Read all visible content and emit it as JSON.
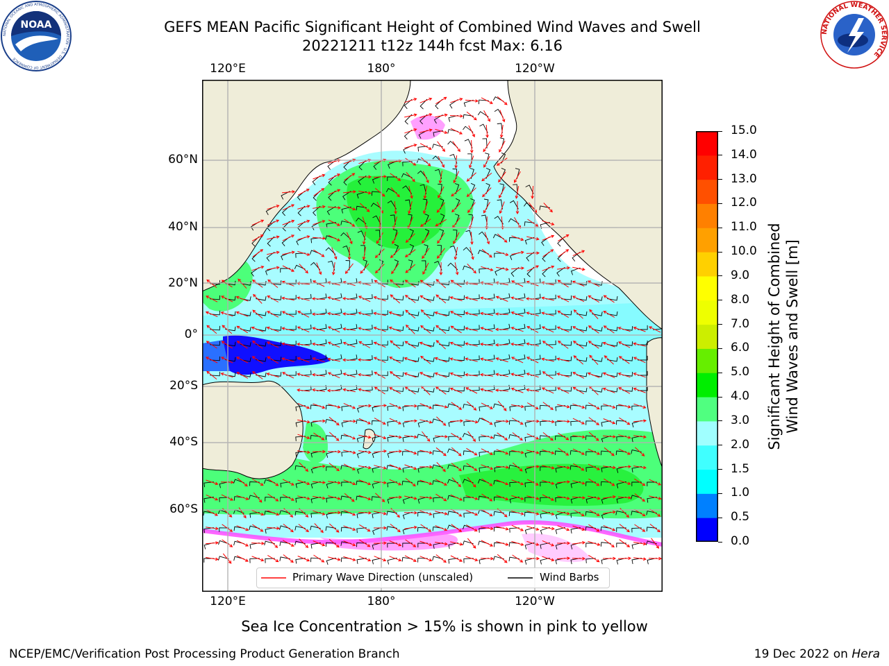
{
  "title": {
    "line1": "GEFS MEAN Pacific Significant Height of Combined Wind Waves and Swell",
    "line2": "20221211 t12z 144h fcst   Max: 6.16"
  },
  "map": {
    "lon_labels": [
      "120°E",
      "180°",
      "120°W"
    ],
    "lat_labels": [
      "60°N",
      "40°N",
      "20°N",
      "0°",
      "20°S",
      "40°S",
      "60°S"
    ],
    "gridline_color": "#b0b0b0",
    "land_color": "#efedd9",
    "ocean_color": "#a8fcff",
    "arrow_color": "#ff0000",
    "barb_color": "#000000"
  },
  "legend": {
    "wave_direction": "Primary Wave Direction (unscaled)",
    "wind_barbs": "Wind Barbs",
    "placement": "lower-center"
  },
  "colorbar": {
    "label_line1": "Significant Height of Combined",
    "label_line2": "Wind Waves and Swell [m]",
    "ticks": [
      "0.0",
      "0.5",
      "1.0",
      "1.5",
      "2.0",
      "3.0",
      "4.0",
      "5.0",
      "6.0",
      "7.0",
      "8.0",
      "9.0",
      "10.0",
      "11.0",
      "12.0",
      "13.0",
      "14.0",
      "15.0"
    ],
    "colors": [
      "#0000ff",
      "#0080ff",
      "#00ffff",
      "#40ffff",
      "#a0ffff",
      "#50ff80",
      "#00ee00",
      "#66ee00",
      "#ccee00",
      "#eeff00",
      "#ffff00",
      "#ffd000",
      "#ffa000",
      "#ff8000",
      "#ff5000",
      "#ff2000",
      "#ff0000"
    ]
  },
  "subtitle": "Sea Ice Concentration > 15% is shown in pink to yellow",
  "footer": {
    "left": "NCEP/EMC/Verification Post Processing Product Generation Branch",
    "right_date": "19 Dec 2022 on",
    "right_machine": "Hera"
  },
  "logos": {
    "noaa_text": "NOAA",
    "noaa_ring_text": "NATIONAL OCEANIC AND ATMOSPHERIC ADMINISTRATION · U.S. DEPARTMENT OF COMMERCE",
    "nws_ring_text": "NATIONAL WEATHER SERVICE"
  }
}
